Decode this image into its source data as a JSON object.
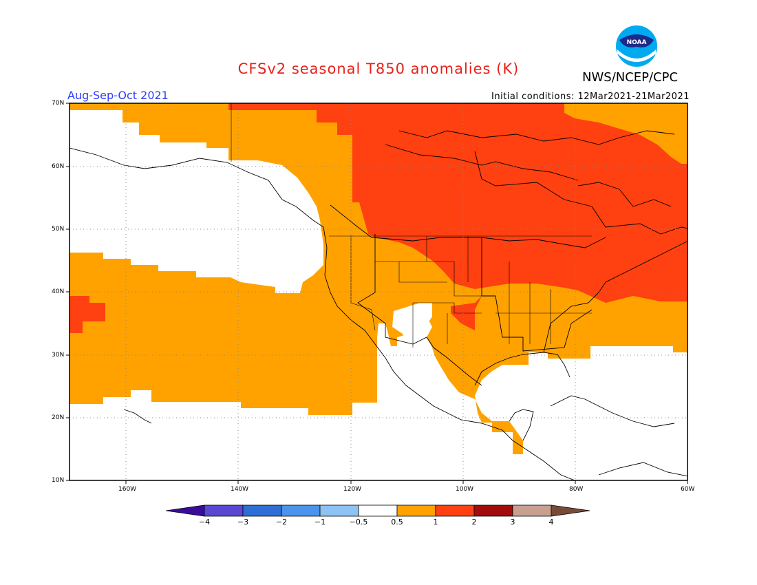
{
  "title": "CFSv2 seasonal T850 anomalies (K)",
  "agency": "NWS/NCEP/CPC",
  "logo_text": "NOAA",
  "season": "Aug-Sep-Oct 2021",
  "initial_conditions": "Initial conditions: 12Mar2021-21Mar2021",
  "axes": {
    "lat_labels": [
      "70N",
      "60N",
      "50N",
      "40N",
      "30N",
      "20N",
      "10N"
    ],
    "lon_labels": [
      "160W",
      "140W",
      "120W",
      "100W",
      "80W",
      "60W"
    ]
  },
  "colorbar": {
    "labels": [
      "−4",
      "−3",
      "−2",
      "−1",
      "−0.5",
      "0.5",
      "1",
      "2",
      "3",
      "4"
    ],
    "colors": [
      "#3a0c9c",
      "#5a48d4",
      "#2f6ed6",
      "#4a94ee",
      "#8cc2f4",
      "#ffffff",
      "#ffa200",
      "#ff4010",
      "#a30c0c",
      "#c8a090",
      "#7a4a38"
    ]
  },
  "legend_colors": {
    "anomaly_0_5_to_1": "#ffa200",
    "anomaly_1_to_2": "#ff4010"
  }
}
